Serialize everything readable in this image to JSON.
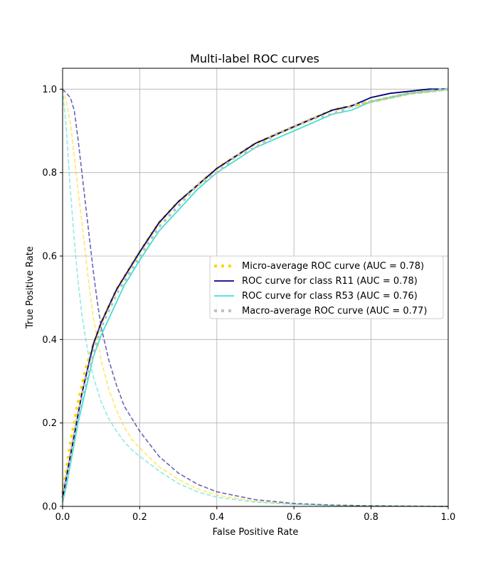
{
  "chart_data": {
    "type": "line",
    "title": "Multi-label ROC curves",
    "xlabel": "False Positive Rate",
    "ylabel": "True Positive Rate",
    "xlim": [
      0.0,
      1.0
    ],
    "ylim": [
      0.0,
      1.05
    ],
    "xticks": [
      "0.0",
      "0.2",
      "0.4",
      "0.6",
      "0.8",
      "1.0"
    ],
    "yticks": [
      "0.0",
      "0.2",
      "0.4",
      "0.6",
      "0.8",
      "1.0"
    ],
    "grid": true,
    "legend_position": "center-right",
    "series": [
      {
        "name": "Micro-average ROC curve (AUC = 0.78)",
        "color": "#ffd700",
        "style": "dotted-thick",
        "x": [
          0.0,
          0.01,
          0.02,
          0.03,
          0.04,
          0.05,
          0.06,
          0.08,
          0.1,
          0.12,
          0.14,
          0.16,
          0.18,
          0.2,
          0.25,
          0.3,
          0.35,
          0.4,
          0.45,
          0.5,
          0.55,
          0.6,
          0.65,
          0.7,
          0.75,
          0.8,
          0.85,
          0.9,
          0.95,
          1.0
        ],
        "y": [
          0.03,
          0.09,
          0.15,
          0.2,
          0.25,
          0.29,
          0.33,
          0.39,
          0.44,
          0.48,
          0.52,
          0.55,
          0.58,
          0.61,
          0.68,
          0.73,
          0.77,
          0.81,
          0.84,
          0.87,
          0.89,
          0.91,
          0.93,
          0.95,
          0.96,
          0.97,
          0.98,
          0.99,
          0.995,
          1.0
        ]
      },
      {
        "name": "ROC curve for class R11 (AUC = 0.78)",
        "color": "#000080",
        "style": "solid",
        "x": [
          0.0,
          0.01,
          0.02,
          0.03,
          0.04,
          0.05,
          0.06,
          0.08,
          0.1,
          0.12,
          0.14,
          0.16,
          0.18,
          0.2,
          0.25,
          0.3,
          0.35,
          0.4,
          0.45,
          0.5,
          0.55,
          0.6,
          0.65,
          0.7,
          0.75,
          0.8,
          0.85,
          0.9,
          0.95,
          1.0
        ],
        "y": [
          0.02,
          0.07,
          0.12,
          0.17,
          0.22,
          0.27,
          0.31,
          0.39,
          0.44,
          0.48,
          0.52,
          0.55,
          0.58,
          0.61,
          0.68,
          0.73,
          0.77,
          0.81,
          0.84,
          0.87,
          0.89,
          0.91,
          0.93,
          0.95,
          0.96,
          0.98,
          0.99,
          0.995,
          1.0,
          1.0
        ]
      },
      {
        "name": "ROC curve for class R53 (AUC = 0.76)",
        "color": "#40e0d0",
        "style": "solid",
        "x": [
          0.0,
          0.01,
          0.02,
          0.03,
          0.04,
          0.05,
          0.06,
          0.08,
          0.1,
          0.12,
          0.14,
          0.16,
          0.18,
          0.2,
          0.25,
          0.3,
          0.35,
          0.4,
          0.45,
          0.5,
          0.55,
          0.6,
          0.65,
          0.7,
          0.75,
          0.8,
          0.85,
          0.9,
          0.95,
          1.0
        ],
        "y": [
          0.01,
          0.05,
          0.1,
          0.15,
          0.2,
          0.24,
          0.28,
          0.36,
          0.41,
          0.45,
          0.49,
          0.53,
          0.56,
          0.59,
          0.66,
          0.71,
          0.76,
          0.8,
          0.83,
          0.86,
          0.88,
          0.9,
          0.92,
          0.94,
          0.95,
          0.97,
          0.98,
          0.99,
          0.995,
          1.0
        ]
      },
      {
        "name": "Macro-average ROC curve (AUC = 0.77)",
        "color": "#c0c0c0",
        "style": "dotted-thick",
        "x": [
          0.0,
          0.01,
          0.02,
          0.03,
          0.04,
          0.05,
          0.06,
          0.08,
          0.1,
          0.12,
          0.14,
          0.16,
          0.18,
          0.2,
          0.25,
          0.3,
          0.35,
          0.4,
          0.45,
          0.5,
          0.55,
          0.6,
          0.65,
          0.7,
          0.75,
          0.8,
          0.85,
          0.9,
          0.95,
          1.0
        ],
        "y": [
          0.02,
          0.07,
          0.12,
          0.17,
          0.22,
          0.26,
          0.3,
          0.37,
          0.43,
          0.47,
          0.51,
          0.54,
          0.57,
          0.6,
          0.67,
          0.72,
          0.77,
          0.8,
          0.84,
          0.86,
          0.89,
          0.91,
          0.93,
          0.94,
          0.96,
          0.97,
          0.98,
          0.99,
          0.995,
          1.0
        ]
      }
    ],
    "distribution_curves": [
      {
        "color": "#ffd700",
        "style": "dashed",
        "x": [
          0.0,
          0.01,
          0.02,
          0.03,
          0.04,
          0.05,
          0.06,
          0.07,
          0.08,
          0.09,
          0.1,
          0.12,
          0.14,
          0.16,
          0.18,
          0.2,
          0.25,
          0.3,
          0.35,
          0.4,
          0.5,
          0.6,
          0.7,
          0.8,
          1.0
        ],
        "y": [
          1.0,
          0.97,
          0.92,
          0.84,
          0.76,
          0.68,
          0.6,
          0.52,
          0.45,
          0.4,
          0.35,
          0.28,
          0.23,
          0.19,
          0.16,
          0.14,
          0.095,
          0.065,
          0.042,
          0.027,
          0.012,
          0.006,
          0.003,
          0.0015,
          0.0
        ]
      },
      {
        "color": "#000080",
        "style": "dashed",
        "x": [
          0.0,
          0.01,
          0.02,
          0.03,
          0.04,
          0.05,
          0.06,
          0.07,
          0.08,
          0.09,
          0.1,
          0.12,
          0.14,
          0.16,
          0.18,
          0.2,
          0.25,
          0.3,
          0.35,
          0.4,
          0.5,
          0.6,
          0.7,
          0.8,
          1.0
        ],
        "y": [
          1.0,
          0.99,
          0.98,
          0.95,
          0.88,
          0.8,
          0.72,
          0.64,
          0.56,
          0.49,
          0.43,
          0.35,
          0.29,
          0.24,
          0.21,
          0.18,
          0.12,
          0.08,
          0.053,
          0.035,
          0.016,
          0.007,
          0.003,
          0.0015,
          0.0
        ]
      },
      {
        "color": "#40e0d0",
        "style": "dashed",
        "x": [
          0.0,
          0.01,
          0.02,
          0.03,
          0.04,
          0.05,
          0.06,
          0.07,
          0.08,
          0.09,
          0.1,
          0.12,
          0.14,
          0.16,
          0.18,
          0.2,
          0.25,
          0.3,
          0.35,
          0.4,
          0.5,
          0.6,
          0.7,
          0.8,
          1.0
        ],
        "y": [
          1.0,
          0.9,
          0.76,
          0.64,
          0.54,
          0.46,
          0.4,
          0.35,
          0.31,
          0.28,
          0.25,
          0.21,
          0.18,
          0.155,
          0.135,
          0.12,
          0.085,
          0.055,
          0.035,
          0.022,
          0.01,
          0.005,
          0.002,
          0.001,
          0.0
        ]
      }
    ]
  }
}
